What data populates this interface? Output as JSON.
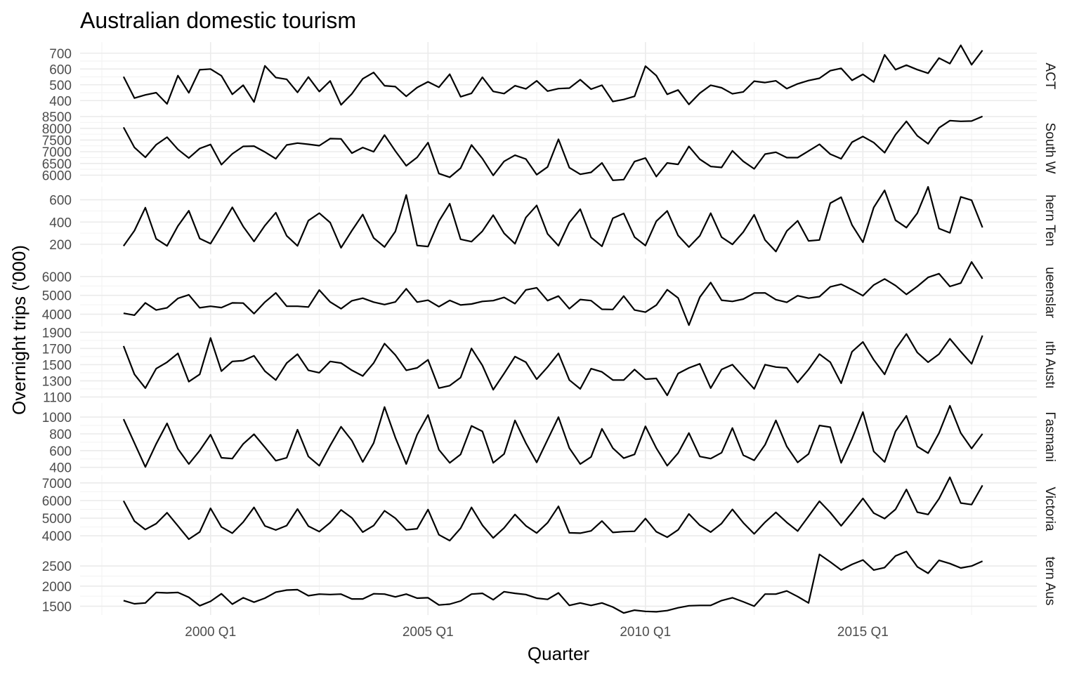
{
  "chart_data": {
    "type": "line",
    "title": "Australian domestic tourism",
    "xlabel": "Quarter",
    "ylabel": "Overnight trips ('000)",
    "x_start": 1998.0,
    "x_step": 0.25,
    "xlim": [
      1997.0,
      2019.0
    ],
    "x_ticks": [
      {
        "label": "2000 Q1",
        "value": 2000
      },
      {
        "label": "2005 Q1",
        "value": 2005
      },
      {
        "label": "2010 Q1",
        "value": 2010
      },
      {
        "label": "2015 Q1",
        "value": 2015
      }
    ],
    "panels": [
      {
        "state": "ACT",
        "strip_label": "ACT",
        "ylim": [
          340,
          770
        ],
        "y_ticks": [
          "400",
          "500",
          "600",
          "700"
        ],
        "values": [
          551,
          416,
          436,
          450,
          379,
          558,
          449,
          595,
          600,
          557,
          440,
          497,
          391,
          620,
          546,
          535,
          452,
          549,
          457,
          524,
          373,
          443,
          538,
          578,
          494,
          488,
          427,
          483,
          519,
          484,
          567,
          424,
          446,
          548,
          458,
          444,
          494,
          474,
          525,
          460,
          476,
          479,
          532,
          472,
          497,
          394,
          407,
          427,
          618,
          558,
          440,
          467,
          376,
          447,
          497,
          481,
          443,
          455,
          523,
          514,
          525,
          476,
          506,
          527,
          541,
          589,
          604,
          528,
          566,
          518,
          689,
          596,
          624,
          596,
          573,
          669,
          634,
          750,
          627,
          718
        ]
      },
      {
        "state": "New South Wales",
        "strip_label": "South W",
        "ylim": [
          5700,
          8600
        ],
        "y_ticks": [
          "6000",
          "6500",
          "7000",
          "7500",
          "8000",
          "8500"
        ],
        "values": [
          8040,
          7180,
          6760,
          7300,
          7620,
          7100,
          6730,
          7140,
          7310,
          6450,
          6910,
          7230,
          7240,
          6990,
          6700,
          7290,
          7370,
          7320,
          7260,
          7560,
          7550,
          6940,
          7180,
          7000,
          7710,
          7030,
          6400,
          6760,
          7390,
          6070,
          5910,
          6300,
          7290,
          6710,
          5990,
          6590,
          6850,
          6690,
          6020,
          6350,
          7530,
          6320,
          6040,
          6120,
          6520,
          5780,
          5810,
          6580,
          6730,
          5940,
          6520,
          6460,
          7230,
          6680,
          6370,
          6330,
          7040,
          6590,
          6270,
          6900,
          6980,
          6750,
          6750,
          7030,
          7320,
          6900,
          6700,
          7410,
          7650,
          7390,
          6960,
          7730,
          8300,
          7680,
          7340,
          8020,
          8330,
          8300,
          8310,
          8510
        ]
      },
      {
        "state": "Northern Territory",
        "strip_label": "hern Ten",
        "ylim": [
          110,
          720
        ],
        "y_ticks": [
          "200",
          "400",
          "600"
        ],
        "values": [
          185,
          323,
          529,
          249,
          186,
          365,
          501,
          252,
          206,
          366,
          532,
          360,
          226,
          368,
          484,
          277,
          186,
          413,
          480,
          395,
          169,
          323,
          468,
          257,
          176,
          316,
          643,
          189,
          180,
          407,
          564,
          245,
          224,
          318,
          462,
          299,
          205,
          441,
          549,
          294,
          187,
          396,
          516,
          262,
          182,
          434,
          477,
          265,
          189,
          407,
          500,
          279,
          175,
          277,
          480,
          264,
          199,
          310,
          465,
          238,
          135,
          319,
          411,
          231,
          239,
          569,
          623,
          373,
          218,
          531,
          685,
          416,
          350,
          479,
          716,
          342,
          303,
          626,
          596,
          351
        ]
      },
      {
        "state": "Queensland",
        "strip_label": "ueenslar",
        "ylim": [
          3350,
          6950
        ],
        "y_ticks": [
          "4000",
          "5000",
          "6000"
        ],
        "values": [
          4050,
          3950,
          4600,
          4220,
          4340,
          4840,
          5030,
          4340,
          4420,
          4350,
          4600,
          4590,
          4030,
          4640,
          5130,
          4420,
          4420,
          4380,
          5280,
          4650,
          4290,
          4710,
          4850,
          4640,
          4510,
          4650,
          5350,
          4640,
          4740,
          4400,
          4730,
          4490,
          4540,
          4680,
          4720,
          4890,
          4560,
          5290,
          5400,
          4720,
          4960,
          4290,
          4780,
          4720,
          4260,
          4250,
          4960,
          4220,
          4110,
          4480,
          5300,
          4860,
          3420,
          4900,
          5680,
          4740,
          4680,
          4800,
          5120,
          5130,
          4770,
          4630,
          4980,
          4850,
          4930,
          5450,
          5590,
          5300,
          4980,
          5550,
          5870,
          5520,
          5050,
          5470,
          5950,
          6150,
          5470,
          5650,
          6770,
          5880
        ]
      },
      {
        "state": "South Australia",
        "strip_label": "ıth Austı",
        "ylim": [
          1080,
          1920
        ],
        "y_ticks": [
          "1100",
          "1300",
          "1500",
          "1700",
          "1900"
        ],
        "values": [
          1730,
          1380,
          1210,
          1450,
          1530,
          1640,
          1290,
          1380,
          1830,
          1420,
          1540,
          1550,
          1610,
          1420,
          1310,
          1520,
          1630,
          1430,
          1400,
          1540,
          1520,
          1430,
          1360,
          1520,
          1760,
          1620,
          1430,
          1460,
          1560,
          1210,
          1240,
          1340,
          1700,
          1490,
          1190,
          1390,
          1600,
          1530,
          1320,
          1470,
          1640,
          1310,
          1200,
          1450,
          1410,
          1310,
          1310,
          1440,
          1320,
          1330,
          1120,
          1390,
          1460,
          1510,
          1210,
          1440,
          1500,
          1350,
          1200,
          1500,
          1470,
          1460,
          1280,
          1440,
          1630,
          1530,
          1270,
          1660,
          1780,
          1560,
          1380,
          1690,
          1880,
          1650,
          1530,
          1630,
          1820,
          1660,
          1510,
          1860
        ]
      },
      {
        "state": "Tasmania",
        "strip_label": "Гasmani",
        "ylim": [
          360,
          1170
        ],
        "y_ticks": [
          "400",
          "600",
          "800",
          "1000"
        ],
        "values": [
          975,
          690,
          405,
          680,
          925,
          620,
          440,
          600,
          790,
          515,
          505,
          680,
          795,
          640,
          480,
          515,
          850,
          530,
          420,
          660,
          885,
          720,
          465,
          690,
          1120,
          755,
          440,
          790,
          1025,
          610,
          455,
          555,
          895,
          830,
          455,
          560,
          960,
          690,
          460,
          730,
          1000,
          630,
          440,
          525,
          860,
          630,
          510,
          555,
          890,
          630,
          420,
          570,
          810,
          530,
          505,
          575,
          870,
          545,
          485,
          670,
          960,
          650,
          460,
          560,
          900,
          880,
          455,
          740,
          1060,
          590,
          465,
          830,
          1015,
          650,
          570,
          810,
          1135,
          810,
          625,
          800
        ]
      },
      {
        "state": "Victoria",
        "strip_label": "Victoria",
        "ylim": [
          3600,
          7450
        ],
        "y_ticks": [
          "4000",
          "5000",
          "6000",
          "7000"
        ],
        "values": [
          5980,
          4830,
          4360,
          4690,
          5310,
          4560,
          3810,
          4220,
          5560,
          4500,
          4150,
          4780,
          5610,
          4560,
          4330,
          4580,
          5520,
          4550,
          4240,
          4750,
          5470,
          5020,
          4210,
          4580,
          5420,
          5000,
          4340,
          4400,
          5490,
          4060,
          3730,
          4430,
          5610,
          4600,
          3880,
          4450,
          5210,
          4570,
          4160,
          4740,
          5670,
          4170,
          4150,
          4280,
          4840,
          4190,
          4240,
          4260,
          4980,
          4230,
          3920,
          4340,
          5240,
          4600,
          4210,
          4700,
          5500,
          4740,
          4110,
          4770,
          5330,
          4760,
          4270,
          5110,
          5960,
          5320,
          4570,
          5320,
          6120,
          5290,
          4980,
          5500,
          6630,
          5340,
          5210,
          6100,
          7320,
          5860,
          5770,
          6860
        ]
      },
      {
        "state": "Western Australia",
        "strip_label": "tern Aus",
        "ylim": [
          1280,
          2970
        ],
        "y_ticks": [
          "1500",
          "2000",
          "2500"
        ],
        "values": [
          1640,
          1560,
          1580,
          1840,
          1830,
          1840,
          1720,
          1510,
          1620,
          1810,
          1550,
          1710,
          1600,
          1700,
          1850,
          1900,
          1910,
          1760,
          1800,
          1790,
          1800,
          1680,
          1680,
          1810,
          1800,
          1730,
          1800,
          1700,
          1710,
          1530,
          1550,
          1630,
          1800,
          1820,
          1660,
          1860,
          1820,
          1790,
          1700,
          1670,
          1830,
          1520,
          1580,
          1520,
          1580,
          1480,
          1330,
          1400,
          1370,
          1360,
          1390,
          1460,
          1510,
          1520,
          1520,
          1640,
          1710,
          1610,
          1500,
          1800,
          1800,
          1880,
          1740,
          1580,
          2790,
          2600,
          2400,
          2540,
          2650,
          2400,
          2460,
          2750,
          2860,
          2480,
          2320,
          2640,
          2560,
          2450,
          2500,
          2620
        ]
      }
    ]
  }
}
